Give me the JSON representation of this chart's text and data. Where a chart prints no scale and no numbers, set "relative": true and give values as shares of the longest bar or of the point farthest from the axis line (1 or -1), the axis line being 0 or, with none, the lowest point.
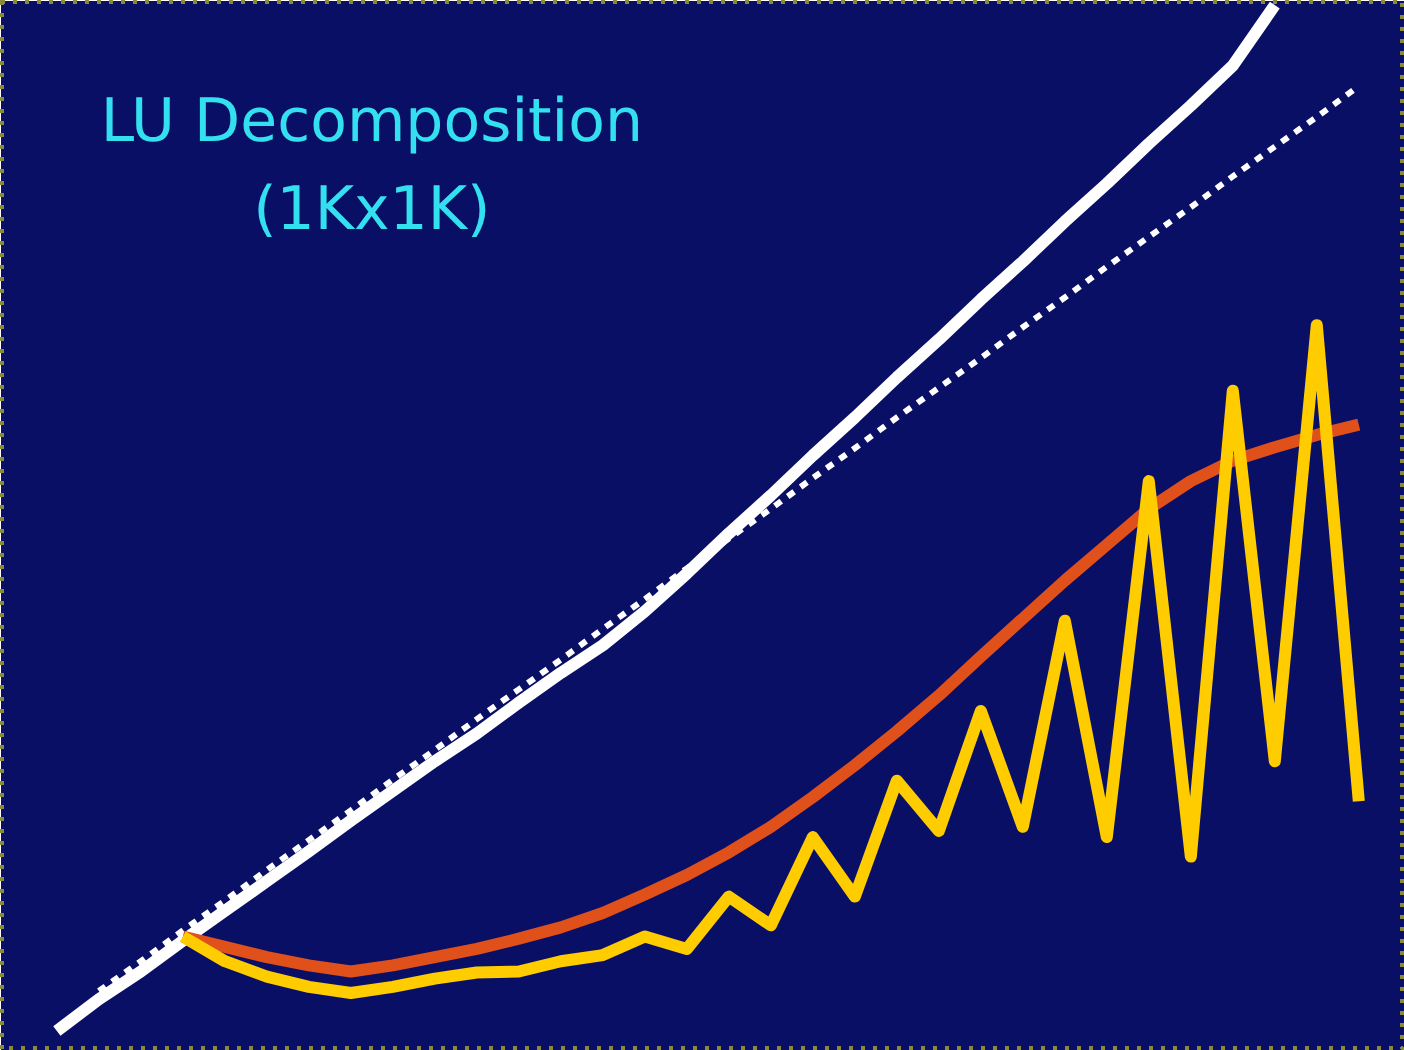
{
  "chart_data": {
    "type": "line",
    "title": "LU Decomposition\n(1Kx1K)",
    "relative": true,
    "grid": false,
    "categories": [
      null,
      null,
      null,
      null,
      null,
      null,
      null,
      null,
      null,
      null,
      null,
      null,
      null,
      null,
      null,
      null,
      null,
      null,
      null,
      null,
      null,
      null,
      null,
      null,
      null,
      null,
      null,
      null,
      null,
      null,
      null,
      null
    ],
    "series": [
      {
        "color": "#ffffff",
        "line_style": "solid",
        "values": [
          0,
          0.031,
          0.058,
          0.088,
          0.117,
          0.146,
          0.175,
          0.205,
          0.234,
          0.263,
          0.29,
          0.32,
          0.349,
          0.376,
          0.409,
          0.446,
          0.485,
          0.522,
          0.561,
          0.598,
          0.637,
          0.674,
          0.713,
          0.75,
          0.789,
          0.826,
          0.865,
          0.902,
          0.941,
          1.0,
          null,
          null
        ]
      },
      {
        "color": "#ffffff",
        "line_style": "dashed",
        "values": [
          null,
          0.039,
          0.068,
          0.098,
          0.127,
          0.157,
          0.186,
          0.215,
          0.245,
          0.274,
          0.304,
          0.333,
          0.362,
          0.392,
          0.421,
          0.451,
          0.48,
          0.509,
          0.539,
          0.568,
          0.598,
          0.627,
          0.656,
          0.686,
          0.715,
          0.745,
          0.774,
          0.803,
          0.833,
          0.862,
          0.891,
          0.921
        ]
      },
      {
        "color": "#e0501a",
        "line_style": "solid",
        "values": [
          null,
          null,
          null,
          0.092,
          0.082,
          0.072,
          0.064,
          0.058,
          0.064,
          0.072,
          0.08,
          0.09,
          0.101,
          0.115,
          0.133,
          0.152,
          0.174,
          0.199,
          0.228,
          0.259,
          0.292,
          0.327,
          0.365,
          0.402,
          0.439,
          0.474,
          0.509,
          0.536,
          0.556,
          0.569,
          0.581,
          0.591
        ]
      },
      {
        "color": "#ffcc00",
        "line_style": "solid",
        "values": [
          null,
          null,
          null,
          0.092,
          0.068,
          0.053,
          0.043,
          0.037,
          0.043,
          0.051,
          0.057,
          0.058,
          0.068,
          0.074,
          0.092,
          0.08,
          0.131,
          0.103,
          0.189,
          0.131,
          0.244,
          0.195,
          0.312,
          0.199,
          0.4,
          0.189,
          0.536,
          0.17,
          0.624,
          0.263,
          0.688,
          0.224
        ]
      }
    ]
  }
}
